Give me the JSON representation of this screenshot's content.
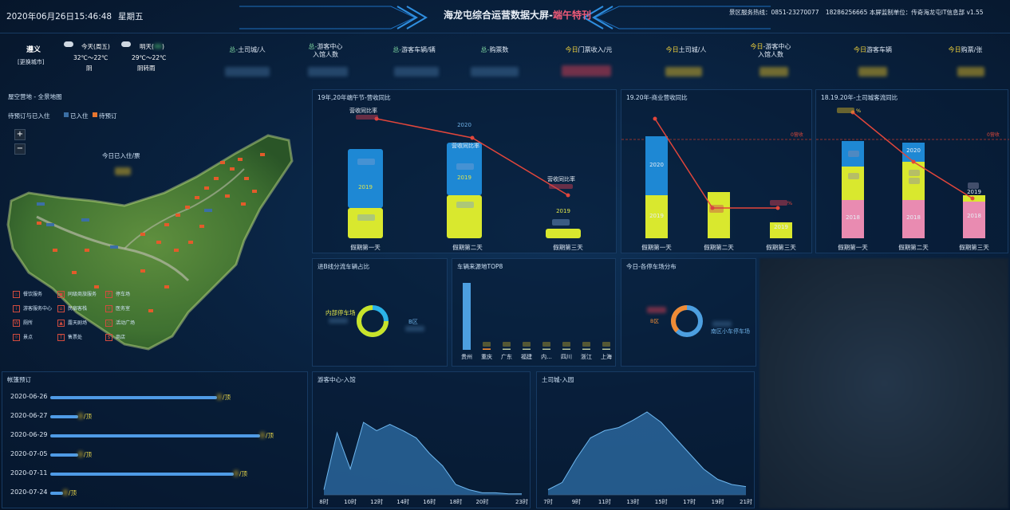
{
  "header": {
    "datetime": "2020年06月26日15:46:48",
    "weekday": "星期五",
    "title_main": "海龙屯综合运营数据大屏-",
    "title_highlight": "端午特刊",
    "hotline": "景区服务热线：0851-23270077",
    "phone2": "18286256665",
    "monitor_unit": "本屏监制单位：",
    "dept": "传奇海龙屯IT信息部",
    "version": "v1.55"
  },
  "weather": {
    "city": "遵义",
    "change_city": "[更换城市]",
    "today_label": "今天(周五)",
    "today_temp": "32℃～22℃",
    "today_desc": "阴",
    "tomorrow_label": "明天(",
    "tomorrow_label_end": ")",
    "tomorrow_temp": "29℃～22℃",
    "tomorrow_desc": "阴转雨"
  },
  "stats": [
    {
      "prefix": "总-",
      "label": "土司城/人"
    },
    {
      "prefix": "总-",
      "label": "游客中心",
      "label2": "入馆人数"
    },
    {
      "prefix": "总-",
      "label": "游客车辆/辆"
    },
    {
      "prefix": "总-",
      "label": "购票数"
    },
    {
      "prefix": "今日",
      "label": "门票收入/元"
    },
    {
      "prefix": "今日",
      "label": "土司城/人"
    },
    {
      "prefix": "今日",
      "label": "-游客中心",
      "label2": "入馆人数"
    },
    {
      "prefix": "今日",
      "label": "游客车辆"
    },
    {
      "prefix": "今日",
      "label": "购票/张"
    }
  ],
  "map_panel": {
    "title": "屋空营地 - 全景地图",
    "status_label": "待预订与已入住",
    "legend_checked": "已入住",
    "legend_booked": "待预订",
    "zoom_in": "+",
    "zoom_out": "−",
    "today_checkin": "今日已入住/票",
    "legend": [
      {
        "label": "餐饮服务",
        "icon": "dining-icon"
      },
      {
        "label": "同级商旅服务",
        "icon": "service-icon"
      },
      {
        "label": "停车场",
        "icon": "parking-icon"
      },
      {
        "label": "游客服务中心",
        "icon": "visitor-center-icon"
      },
      {
        "label": "民宿客栈",
        "icon": "inn-icon"
      },
      {
        "label": "医务室",
        "icon": "medical-icon"
      },
      {
        "label": "厕所",
        "icon": "toilet-icon"
      },
      {
        "label": "露天剧场",
        "icon": "theater-icon"
      },
      {
        "label": "活动广场",
        "icon": "plaza-icon"
      },
      {
        "label": "景点",
        "icon": "scenic-icon"
      },
      {
        "label": "售票处",
        "icon": "ticket-icon"
      },
      {
        "label": "商店",
        "icon": "shop-icon"
      }
    ]
  },
  "booking": {
    "title": "帐篷预订",
    "unit": "顶",
    "rows": [
      {
        "date": "2020-06-26",
        "fraction": 0.78
      },
      {
        "date": "2020-06-27",
        "fraction": 0.13
      },
      {
        "date": "2020-06-29",
        "fraction": 0.98
      },
      {
        "date": "2020-07-05",
        "fraction": 0.13
      },
      {
        "date": "2020-07-11",
        "fraction": 0.86
      },
      {
        "date": "2020-07-24",
        "fraction": 0.06
      }
    ]
  },
  "panel_dragon_boat": {
    "title": "19年,20年端午节-营收同比",
    "line_label": "营收同比率",
    "year_2019": "2019",
    "year_2020": "2020",
    "categories": [
      "假期第一天",
      "假期第二天",
      "假期第三天"
    ],
    "stack_label": "营收同比率"
  },
  "panel_commerce": {
    "title": "19.20年-商业营收同比",
    "target": "0营收",
    "year_2020": "2020",
    "year_2019": "2019",
    "pct_suffix": "%",
    "categories": [
      "假期第一天",
      "假期第二天",
      "假期第三天"
    ]
  },
  "panel_tusi": {
    "title": "18.19.20年-土司城客流同比",
    "target": "0营收",
    "pct_suffix": "%",
    "year_2020": "2020",
    "year_2019": "2019",
    "year_2018": "2018",
    "categories": [
      "假期第一天",
      "假期第二天",
      "假期第三天"
    ]
  },
  "panel_diversion": {
    "title": "进B线分流车辆占比",
    "label_inner": "内部停车场",
    "label_outer": "B区"
  },
  "panel_vehicle_top8": {
    "title": "车辆来源地TOP8",
    "chart_data": {
      "type": "bar",
      "categories": [
        "贵州",
        "重庆",
        "广东",
        "福建",
        "内...",
        "四川",
        "浙江",
        "上海"
      ],
      "values": [
        100,
        2,
        1,
        1,
        0.5,
        0.5,
        0.5,
        0.5
      ],
      "title": "车辆来源地TOP8"
    }
  },
  "panel_parking": {
    "title": "今日-各停车场分布",
    "label_right": "南区小车停车场",
    "label_left": "B区"
  },
  "panel_visitor_center": {
    "title": "游客中心-入馆",
    "chart_data": {
      "type": "area",
      "x": [
        "8时",
        "9时",
        "10时",
        "11时",
        "12时",
        "13时",
        "14时",
        "15时",
        "16时",
        "17时",
        "18时",
        "19时",
        "20时",
        "21时",
        "22时",
        "23时"
      ],
      "x_tick_labels": [
        "8时",
        "10时",
        "12时",
        "14时",
        "16时",
        "18时",
        "20时",
        "23时"
      ],
      "values": [
        5,
        60,
        25,
        70,
        62,
        68,
        62,
        55,
        40,
        28,
        10,
        5,
        2,
        2,
        1,
        1
      ],
      "ylim": [
        0,
        100
      ]
    }
  },
  "panel_tusi_entry": {
    "title": "土司城-入园",
    "chart_data": {
      "type": "area",
      "x": [
        "7时",
        "8时",
        "9时",
        "10时",
        "11时",
        "12时",
        "13时",
        "14时",
        "15时",
        "16时",
        "17时",
        "18时",
        "19时",
        "20时",
        "21时"
      ],
      "x_tick_labels": [
        "7时",
        "9时",
        "11时",
        "13时",
        "15时",
        "17时",
        "19时",
        "21时"
      ],
      "values": [
        5,
        12,
        35,
        55,
        62,
        65,
        72,
        80,
        70,
        55,
        40,
        25,
        15,
        10,
        8
      ],
      "ylim": [
        0,
        100
      ]
    }
  },
  "colors": {
    "cyan_bar": "#1e88d4",
    "yellow_bar": "#d9e82e",
    "pink_bar": "#e98bb1",
    "trend_line": "#e2463b",
    "area_fill": "#2f6fa8"
  }
}
